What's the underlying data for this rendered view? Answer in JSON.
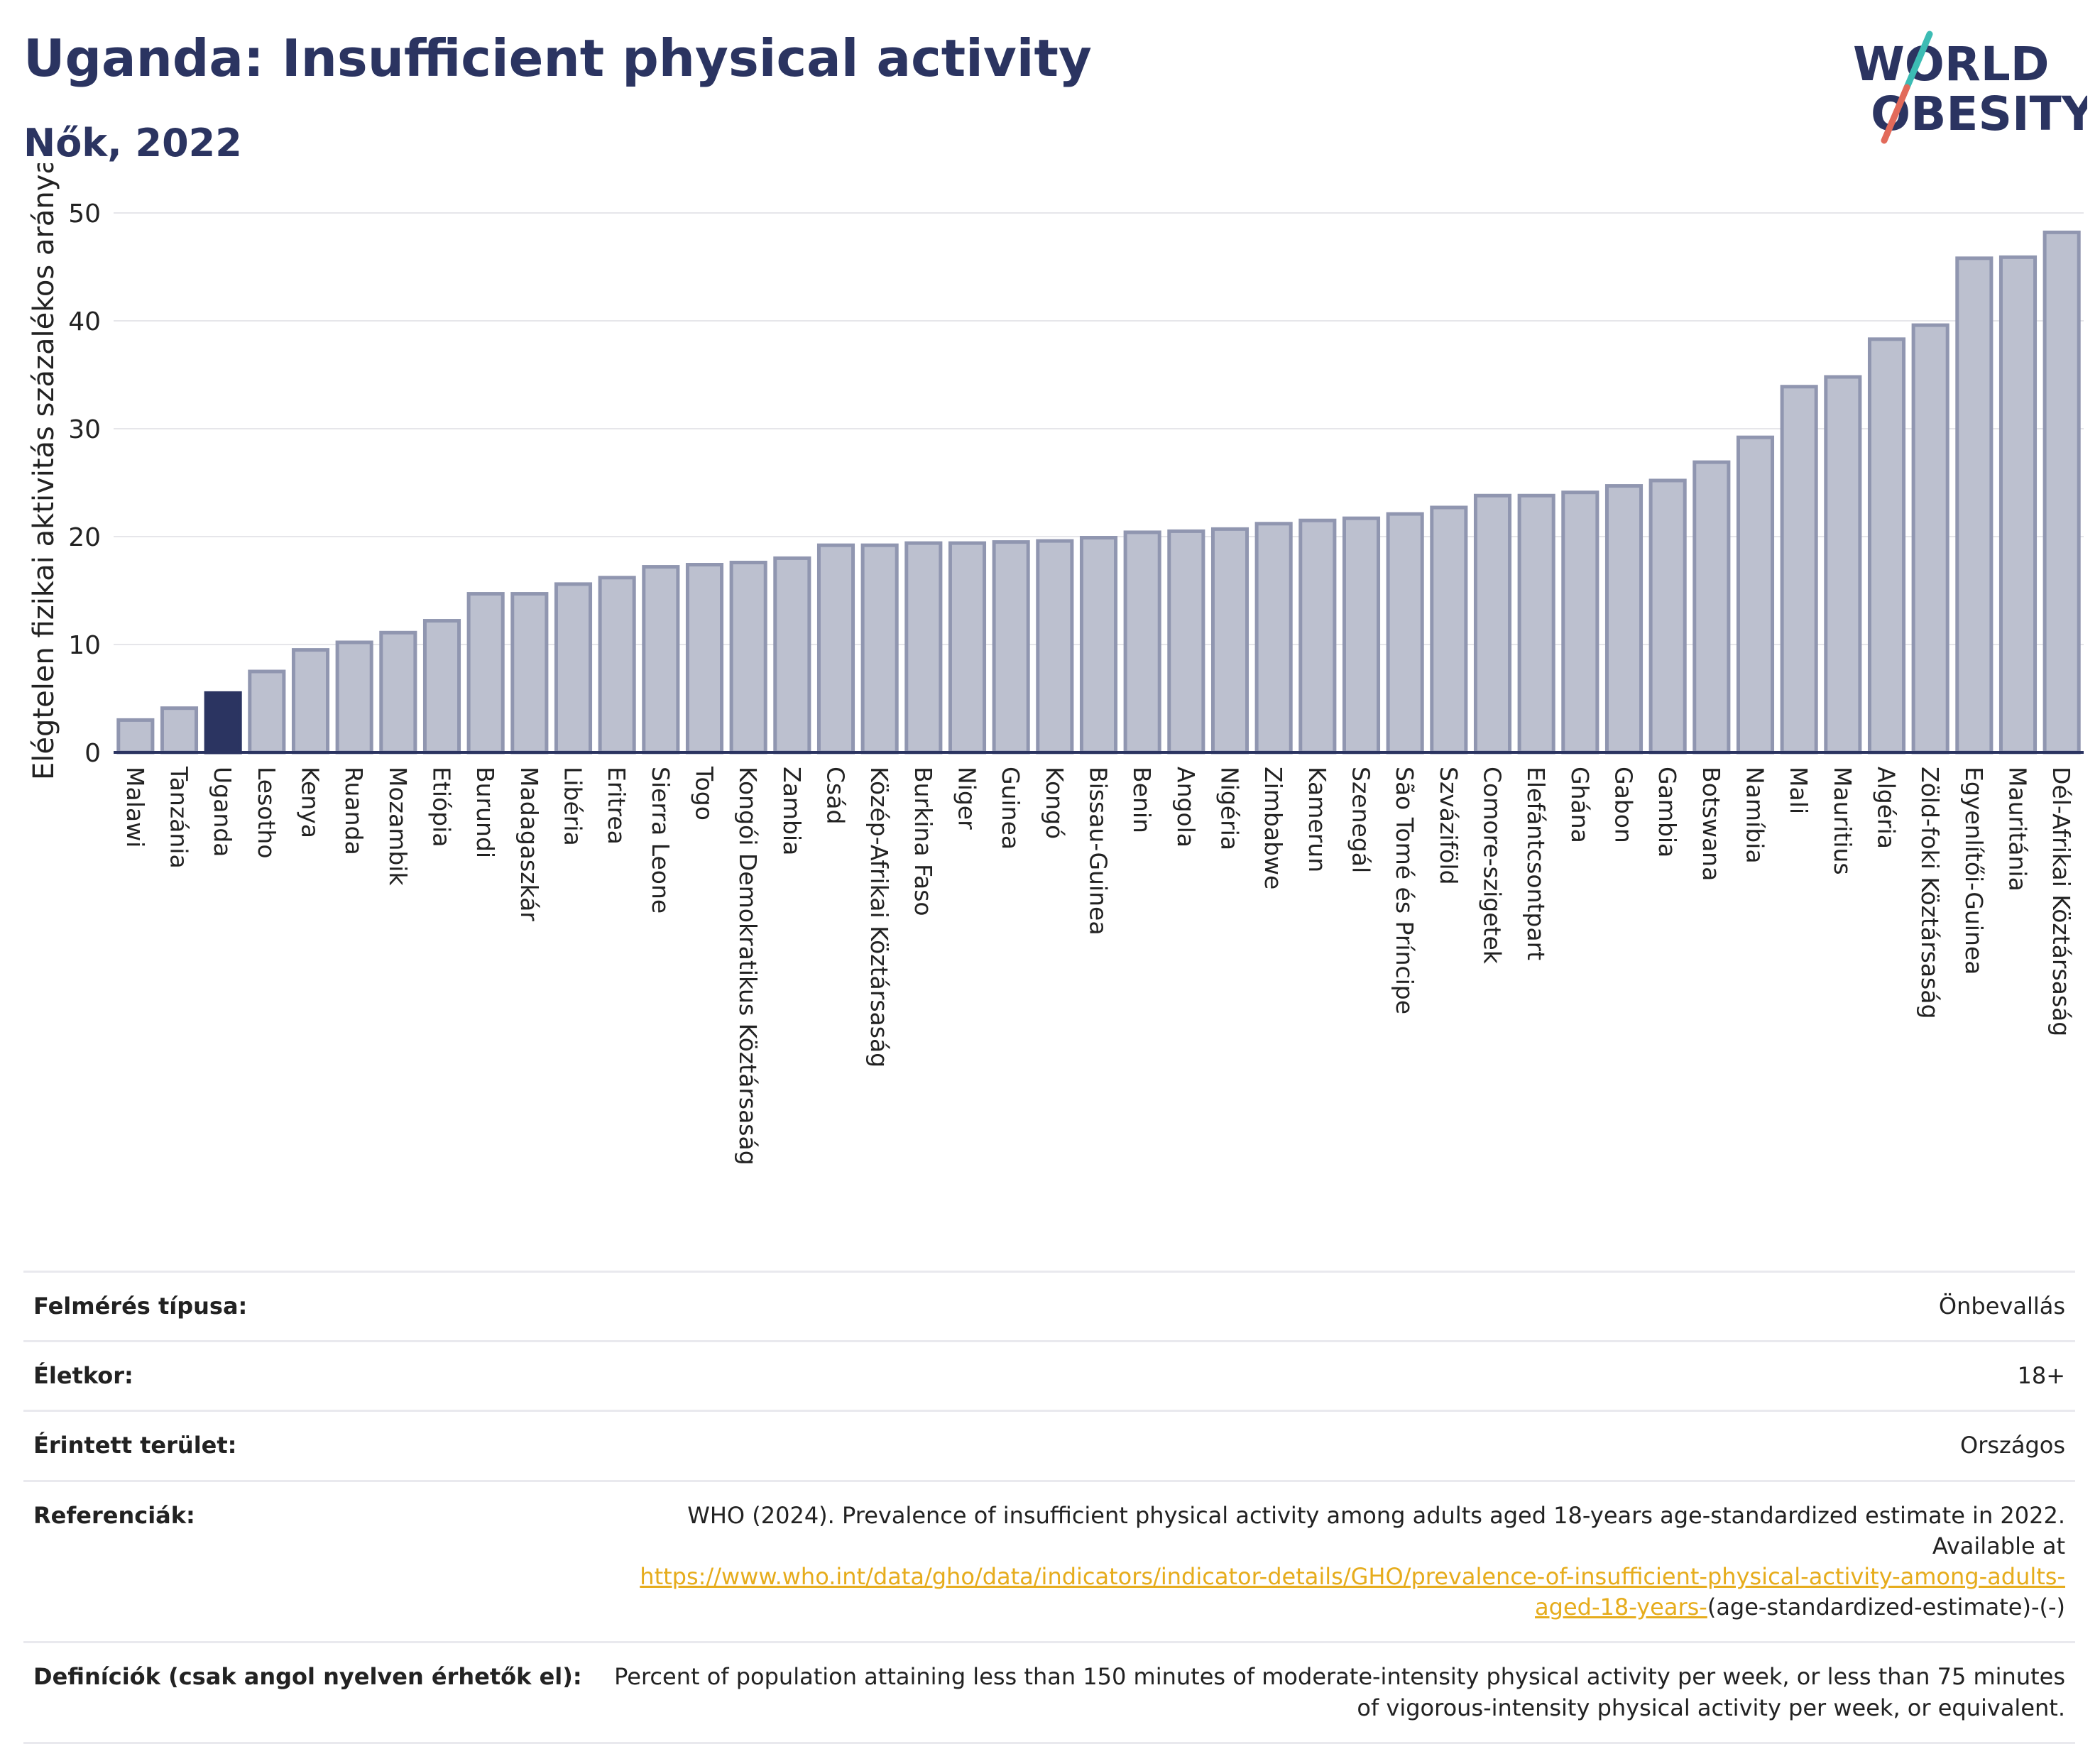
{
  "header": {
    "title": "Uganda: Insufficient physical activity",
    "subtitle": "Nők, 2022",
    "logo_line1": "WORLD",
    "logo_line2": "OBESITY"
  },
  "colors": {
    "title": "#2b3461",
    "bar_fill": "#bcc0cf",
    "bar_stroke": "#9096b0",
    "highlight": "#2b3461",
    "link": "#e6ac1c",
    "logo_teal": "#3cbcb4",
    "logo_coral": "#e26a5a"
  },
  "chart_data": {
    "type": "bar",
    "title": "",
    "ylabel": "Elégtelen fizikai aktivitás százalékos aránya",
    "xlabel": "",
    "ylim": [
      0,
      50
    ],
    "yticks": [
      0,
      10,
      20,
      30,
      40,
      50
    ],
    "grid": true,
    "highlight_category": "Uganda",
    "categories": [
      "Malawi",
      "Tanzánia",
      "Uganda",
      "Lesotho",
      "Kenya",
      "Ruanda",
      "Mozambik",
      "Etiópia",
      "Burundi",
      "Madagaszkár",
      "Libéria",
      "Eritrea",
      "Sierra Leone",
      "Togo",
      "Kongói Demokratikus Köztársaság",
      "Zambia",
      "Csád",
      "Közép-Afrikai Köztársaság",
      "Burkina Faso",
      "Niger",
      "Guinea",
      "Kongó",
      "Bissau-Guinea",
      "Benin",
      "Angola",
      "Nigéria",
      "Zimbabwe",
      "Kamerun",
      "Szenegál",
      "São Tomé és Príncipe",
      "Szváziföld",
      "Comore-szigetek",
      "Elefántcsontpart",
      "Ghána",
      "Gabon",
      "Gambia",
      "Botswana",
      "Namíbia",
      "Mali",
      "Mauritius",
      "Algéria",
      "Zöld-foki Köztársaság",
      "Egyenlítői-Guinea",
      "Mauritánia",
      "Dél-Afrikai Köztársaság"
    ],
    "values": [
      3.0,
      4.1,
      5.5,
      7.5,
      9.5,
      10.2,
      11.1,
      12.2,
      14.7,
      14.7,
      15.6,
      16.2,
      17.2,
      17.4,
      17.6,
      18.0,
      19.2,
      19.2,
      19.4,
      19.4,
      19.5,
      19.6,
      19.9,
      20.4,
      20.5,
      20.7,
      21.2,
      21.5,
      21.7,
      22.1,
      22.7,
      23.8,
      23.8,
      24.1,
      24.7,
      25.2,
      26.9,
      29.2,
      33.9,
      34.8,
      38.3,
      39.6,
      45.8,
      45.9,
      48.2
    ]
  },
  "info": {
    "survey_type_label": "Felmérés típusa:",
    "survey_type_value": "Önbevallás",
    "age_label": "Életkor:",
    "age_value": "18+",
    "area_label": "Érintett terület:",
    "area_value": "Országos",
    "references_label": "Referenciák:",
    "references_text": "WHO (2024). Prevalence of insufficient physical activity among adults aged 18-years age-standardized estimate in 2022. Available at",
    "references_link": "https://www.who.int/data/gho/data/indicators/indicator-details/GHO/prevalence-of-insufficient-physical-activity-among-adults-aged-18-years-",
    "references_suffix": "(age-standardized-estimate)-(-)",
    "definitions_label": "Definíciók (csak angol nyelven érhetők el):",
    "definitions_text": "Percent of population attaining less than 150 minutes of moderate-intensity physical activity per week, or less than 75 minutes of vigorous-intensity physical activity per week, or equivalent."
  }
}
